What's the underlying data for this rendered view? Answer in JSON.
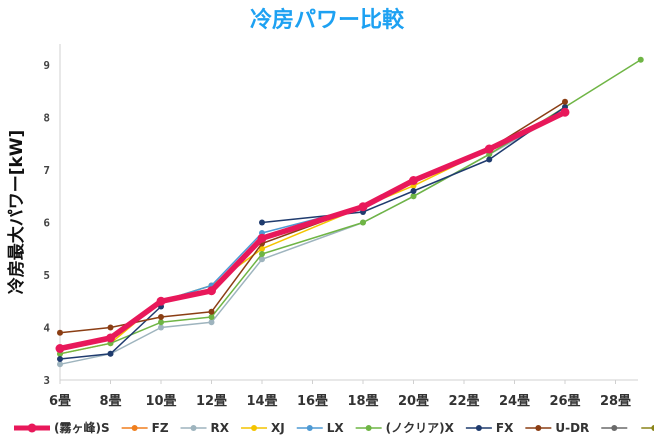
{
  "chart_data": {
    "type": "line",
    "title": "冷房パワー比較",
    "xlabel": "",
    "ylabel": "冷房最大パワー[kW]",
    "categories": [
      "6畳",
      "8畳",
      "10畳",
      "12畳",
      "14畳",
      "16畳",
      "18畳",
      "20畳",
      "22畳",
      "24畳",
      "26畳",
      "28畳"
    ],
    "ylim": [
      3,
      9.4
    ],
    "yticks": [
      3,
      4,
      5,
      6,
      7,
      8,
      9
    ],
    "grid": false,
    "legend_position": "bottom",
    "series": [
      {
        "name": "(霧ヶ峰)S",
        "color": "#e8185a",
        "width": 5.5,
        "marker": 9,
        "points": [
          [
            0,
            3.6
          ],
          [
            1,
            3.8
          ],
          [
            2,
            4.5
          ],
          [
            3,
            4.7
          ],
          [
            4,
            5.7
          ],
          [
            6,
            6.3
          ],
          [
            7,
            6.8
          ],
          [
            8.5,
            7.4
          ],
          [
            10,
            8.1
          ]
        ]
      },
      {
        "name": "FZ",
        "color": "#f07f1e",
        "width": 1.5,
        "marker": 6,
        "points": [
          [
            0,
            3.6
          ],
          [
            1,
            3.8
          ],
          [
            2,
            4.5
          ],
          [
            3,
            4.7
          ],
          [
            4,
            5.7
          ],
          [
            6,
            6.3
          ],
          [
            7,
            6.8
          ],
          [
            8.5,
            7.4
          ],
          [
            10,
            8.1
          ]
        ]
      },
      {
        "name": "RX",
        "color": "#9eb4be",
        "width": 1.5,
        "marker": 6,
        "points": [
          [
            0,
            3.3
          ],
          [
            1,
            3.5
          ],
          [
            2,
            4.0
          ],
          [
            3,
            4.1
          ],
          [
            4,
            5.3
          ],
          [
            6,
            6.0
          ],
          [
            7,
            6.5
          ],
          [
            8.5,
            7.3
          ],
          [
            10,
            8.1
          ]
        ]
      },
      {
        "name": "XJ",
        "color": "#f4c400",
        "width": 1.5,
        "marker": 6,
        "points": [
          [
            0,
            3.5
          ],
          [
            1,
            3.7
          ],
          [
            2,
            4.5
          ],
          [
            3,
            4.8
          ],
          [
            4,
            5.5
          ],
          [
            6,
            6.3
          ],
          [
            7,
            6.7
          ],
          [
            8.5,
            7.4
          ],
          [
            10,
            8.1
          ]
        ]
      },
      {
        "name": "LX",
        "color": "#4e9ad4",
        "width": 1.5,
        "marker": 6,
        "points": [
          [
            0,
            3.6
          ],
          [
            1,
            3.8
          ],
          [
            2,
            4.5
          ],
          [
            3,
            4.8
          ],
          [
            4,
            5.8
          ],
          [
            6,
            6.3
          ],
          [
            7,
            6.8
          ],
          [
            8.5,
            7.4
          ],
          [
            10,
            8.1
          ]
        ]
      },
      {
        "name": "(ノクリア)X",
        "color": "#6fb545",
        "width": 1.5,
        "marker": 6,
        "points": [
          [
            0,
            3.5
          ],
          [
            1,
            3.7
          ],
          [
            2,
            4.1
          ],
          [
            3,
            4.2
          ],
          [
            4,
            5.4
          ],
          [
            6,
            6.0
          ],
          [
            7,
            6.5
          ],
          [
            8.5,
            7.3
          ],
          [
            11.5,
            9.1
          ]
        ]
      },
      {
        "name": "FX",
        "color": "#1f3b6e",
        "width": 1.5,
        "marker": 6,
        "points": [
          [
            0,
            3.4
          ],
          [
            1,
            3.5
          ],
          [
            2,
            4.4
          ],
          null,
          [
            4,
            6.0
          ],
          [
            6,
            6.2
          ],
          [
            7,
            6.6
          ],
          [
            8.5,
            7.2
          ],
          [
            10,
            8.2
          ]
        ]
      },
      {
        "name": "U-DR",
        "color": "#8b3e14",
        "width": 1.5,
        "marker": 6,
        "points": [
          [
            0,
            3.9
          ],
          [
            1,
            4.0
          ],
          [
            2,
            4.2
          ],
          [
            3,
            4.3
          ],
          [
            4,
            5.6
          ],
          [
            6,
            6.3
          ],
          [
            7,
            6.8
          ],
          [
            8.5,
            7.4
          ],
          [
            10,
            8.3
          ]
        ]
      },
      {
        "name": "",
        "color": "#6a6a6a",
        "width": 1.5,
        "marker": 6,
        "points": []
      },
      {
        "name": "",
        "color": "#8a8418",
        "width": 1.5,
        "marker": 6,
        "points": []
      }
    ]
  }
}
